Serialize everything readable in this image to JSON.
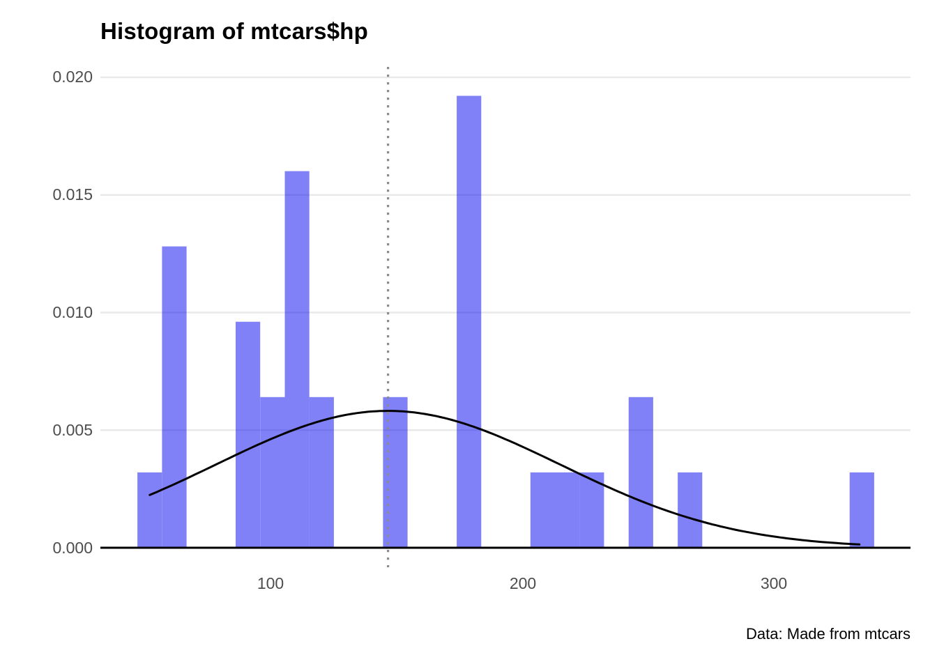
{
  "title": "Histogram of mtcars$hp",
  "caption": "Data: Made from mtcars",
  "colors": {
    "background": "#ffffff",
    "grid": "#e9e9e9",
    "axis": "#000000",
    "curve": "#000000",
    "vline": "#8c8c8c",
    "bar": "rgba(3,3,240,0.5)",
    "bar_flat": "#8181f8",
    "tick_label": "#4d4d4d",
    "title_text": "#000000"
  },
  "chart_data": {
    "type": "bar",
    "subtype": "histogram-with-density-curve",
    "title": "Histogram of mtcars$hp",
    "xlabel": "",
    "ylabel": "",
    "x_ticks": [
      100,
      200,
      300
    ],
    "x_tick_labels": [
      "100",
      "200",
      "300"
    ],
    "y_ticks": [
      0,
      0.005,
      0.01,
      0.015,
      0.02
    ],
    "y_tick_labels": [
      "0.000",
      "0.005",
      "0.010",
      "0.015",
      "0.020"
    ],
    "xlim": [
      32.4,
      354.3
    ],
    "ylim": [
      0,
      0.02
    ],
    "grid": "horizontal",
    "legend": "none",
    "binwidth": 9.759,
    "bar_color": "rgba(3,3,240,0.5)",
    "bars": [
      {
        "x0": 47.12,
        "x1": 56.88,
        "count": 1,
        "density": 0.003203
      },
      {
        "x0": 56.88,
        "x1": 66.64,
        "count": 4,
        "density": 0.012811
      },
      {
        "x0": 86.15,
        "x1": 95.91,
        "count": 3,
        "density": 0.009608
      },
      {
        "x0": 95.91,
        "x1": 105.67,
        "count": 2,
        "density": 0.006405
      },
      {
        "x0": 105.67,
        "x1": 115.43,
        "count": 5,
        "density": 0.016013
      },
      {
        "x0": 115.43,
        "x1": 125.19,
        "count": 2,
        "density": 0.006405
      },
      {
        "x0": 144.71,
        "x1": 154.46,
        "count": 2,
        "density": 0.006405
      },
      {
        "x0": 173.98,
        "x1": 183.74,
        "count": 6,
        "density": 0.019216
      },
      {
        "x0": 203.26,
        "x1": 213.02,
        "count": 1,
        "density": 0.003203
      },
      {
        "x0": 213.02,
        "x1": 222.77,
        "count": 1,
        "density": 0.003203
      },
      {
        "x0": 222.77,
        "x1": 232.53,
        "count": 1,
        "density": 0.003203
      },
      {
        "x0": 242.29,
        "x1": 252.05,
        "count": 2,
        "density": 0.006405
      },
      {
        "x0": 261.81,
        "x1": 271.57,
        "count": 1,
        "density": 0.003203
      },
      {
        "x0": 330.12,
        "x1": 339.88,
        "count": 1,
        "density": 0.003203
      }
    ],
    "normal_curve": {
      "mean": 146.69,
      "sd": 68.56,
      "x_from": 52,
      "x_to": 335,
      "peak_density": 0.00582
    },
    "vline": {
      "x": 146.69,
      "style": "dotted"
    }
  }
}
